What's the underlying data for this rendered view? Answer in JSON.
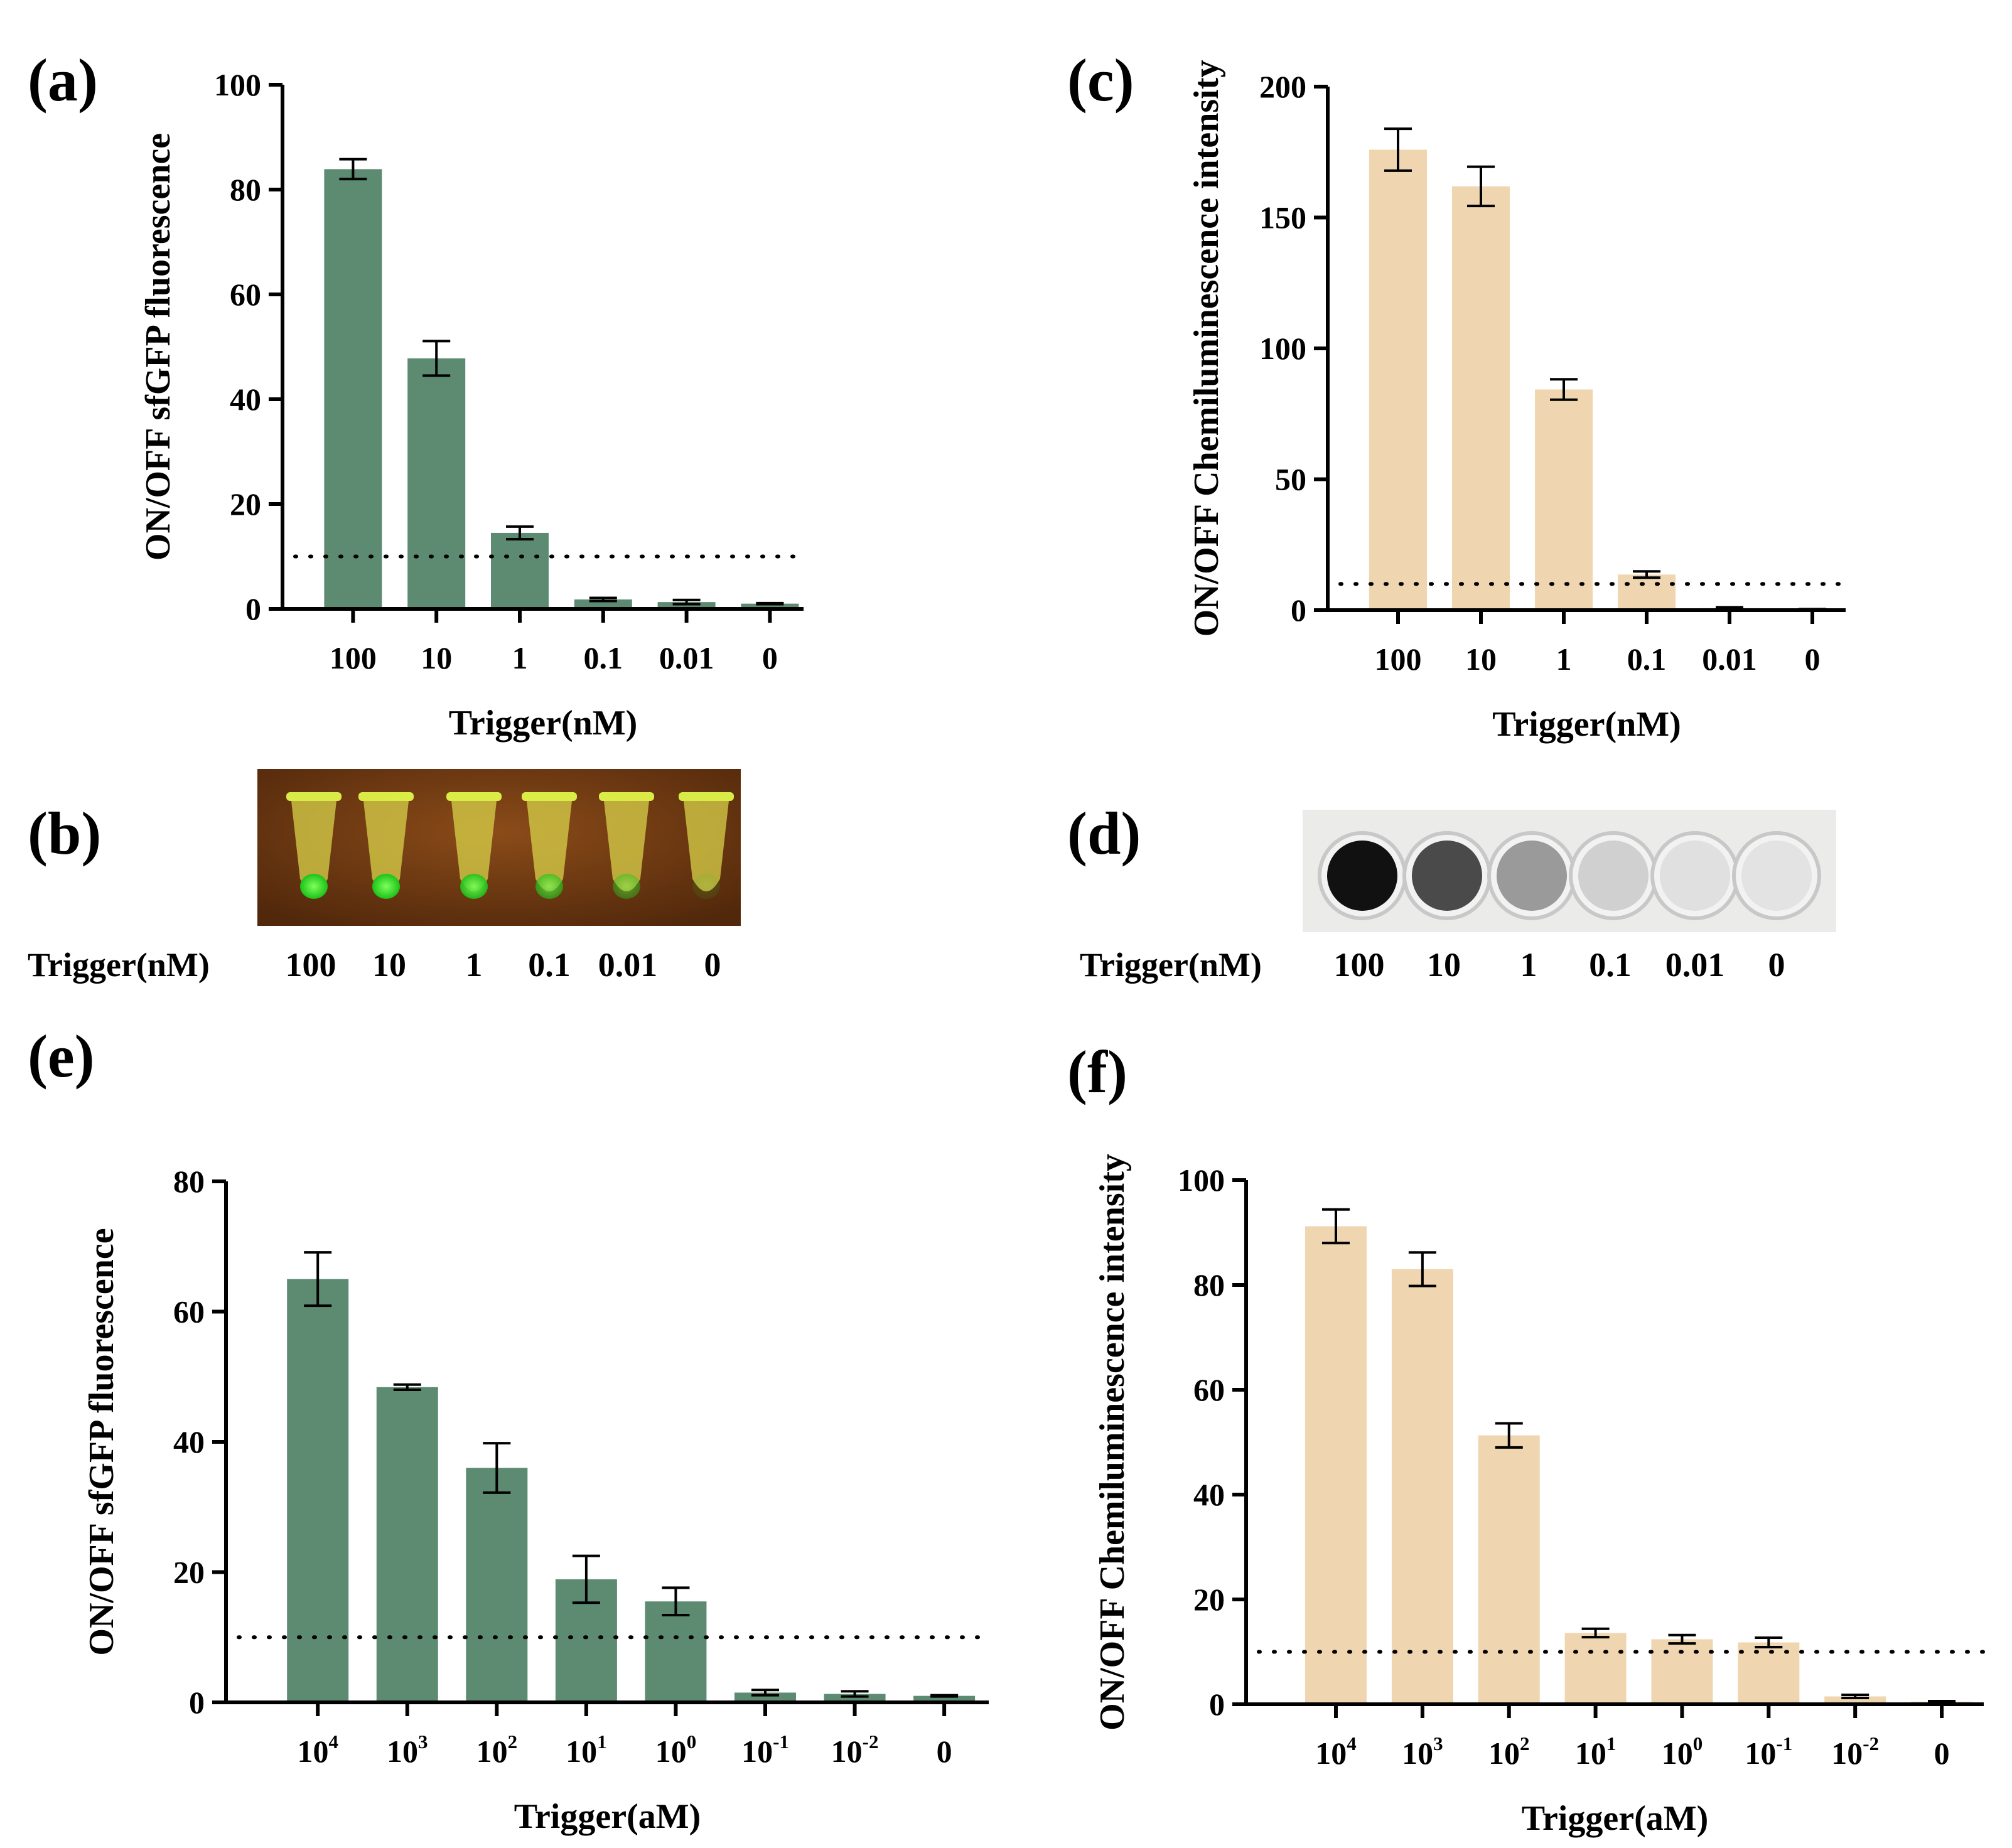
{
  "colors": {
    "green": "#5c8b72",
    "tan": "#f0d6b0",
    "axis": "#000000"
  },
  "panel_labels": {
    "a": "(a)",
    "b": "(b)",
    "c": "(c)",
    "d": "(d)",
    "e": "(e)",
    "f": "(f)"
  },
  "photos": {
    "b": {
      "row_label": "Trigger(nM)",
      "lane_labels": [
        "100",
        "10",
        "1",
        "0.1",
        "0.01",
        "0"
      ]
    },
    "d": {
      "row_label": "Trigger(nM)",
      "lane_labels": [
        "100",
        "10",
        "1",
        "0.1",
        "0.01",
        "0"
      ]
    }
  },
  "chart_data": [
    {
      "id": "a",
      "type": "bar",
      "ylabel": "ON/OFF sfGFP fluorescence",
      "xlabel": "Trigger(nM)",
      "categories": [
        "100",
        "10",
        "1",
        "0.1",
        "0.01",
        "0"
      ],
      "values": [
        83.9,
        47.8,
        14.5,
        1.8,
        1.3,
        1.0
      ],
      "errors": [
        1.9,
        3.3,
        1.2,
        0.3,
        0.4,
        0.1
      ],
      "ylim": [
        0,
        100
      ],
      "yticks": [
        0,
        20,
        40,
        60,
        80,
        100
      ],
      "threshold": 10,
      "color": "green"
    },
    {
      "id": "c",
      "type": "bar",
      "ylabel": "ON/OFF Chemiluminescence intensity",
      "xlabel": "Trigger(nM)",
      "categories": [
        "100",
        "10",
        "1",
        "0.1",
        "0.01",
        "0"
      ],
      "values": [
        175.9,
        161.9,
        84.3,
        13.6,
        0.8,
        0.3
      ],
      "errors": [
        8.0,
        7.5,
        3.9,
        1.2,
        0.3,
        0.1
      ],
      "ylim": [
        0,
        200
      ],
      "yticks": [
        0,
        50,
        100,
        150,
        200
      ],
      "threshold": 10,
      "color": "tan"
    },
    {
      "id": "e",
      "type": "bar",
      "ylabel": "ON/OFF sfGFP fluorescence",
      "xlabel": "Trigger(aM)",
      "categories": [
        {
          "base": "10",
          "exp": "4"
        },
        {
          "base": "10",
          "exp": "3"
        },
        {
          "base": "10",
          "exp": "2"
        },
        {
          "base": "10",
          "exp": "1"
        },
        {
          "base": "10",
          "exp": "0"
        },
        {
          "base": "10",
          "exp": "-1"
        },
        {
          "base": "10",
          "exp": "-2"
        },
        {
          "base": "0",
          "exp": ""
        }
      ],
      "values": [
        65.0,
        48.4,
        36.0,
        18.9,
        15.5,
        1.5,
        1.3,
        1.0
      ],
      "errors": [
        4.1,
        0.4,
        3.8,
        3.6,
        2.1,
        0.4,
        0.4,
        0.1
      ],
      "ylim": [
        0,
        80
      ],
      "yticks": [
        0,
        20,
        40,
        60,
        80
      ],
      "threshold": 10,
      "color": "green"
    },
    {
      "id": "f",
      "type": "bar",
      "ylabel": "ON/OFF Chemiluminescence intensity",
      "xlabel": "Trigger(aM)",
      "categories": [
        {
          "base": "10",
          "exp": "4"
        },
        {
          "base": "10",
          "exp": "3"
        },
        {
          "base": "10",
          "exp": "2"
        },
        {
          "base": "10",
          "exp": "1"
        },
        {
          "base": "10",
          "exp": "0"
        },
        {
          "base": "10",
          "exp": "-1"
        },
        {
          "base": "10",
          "exp": "-2"
        },
        {
          "base": "0",
          "exp": ""
        }
      ],
      "values": [
        91.2,
        83.0,
        51.3,
        13.6,
        12.4,
        11.8,
        1.5,
        0.5
      ],
      "errors": [
        3.2,
        3.2,
        2.3,
        0.8,
        0.8,
        0.9,
        0.3,
        0.1
      ],
      "ylim": [
        0,
        100
      ],
      "yticks": [
        0,
        20,
        40,
        60,
        80,
        100
      ],
      "threshold": 10,
      "color": "tan"
    }
  ]
}
